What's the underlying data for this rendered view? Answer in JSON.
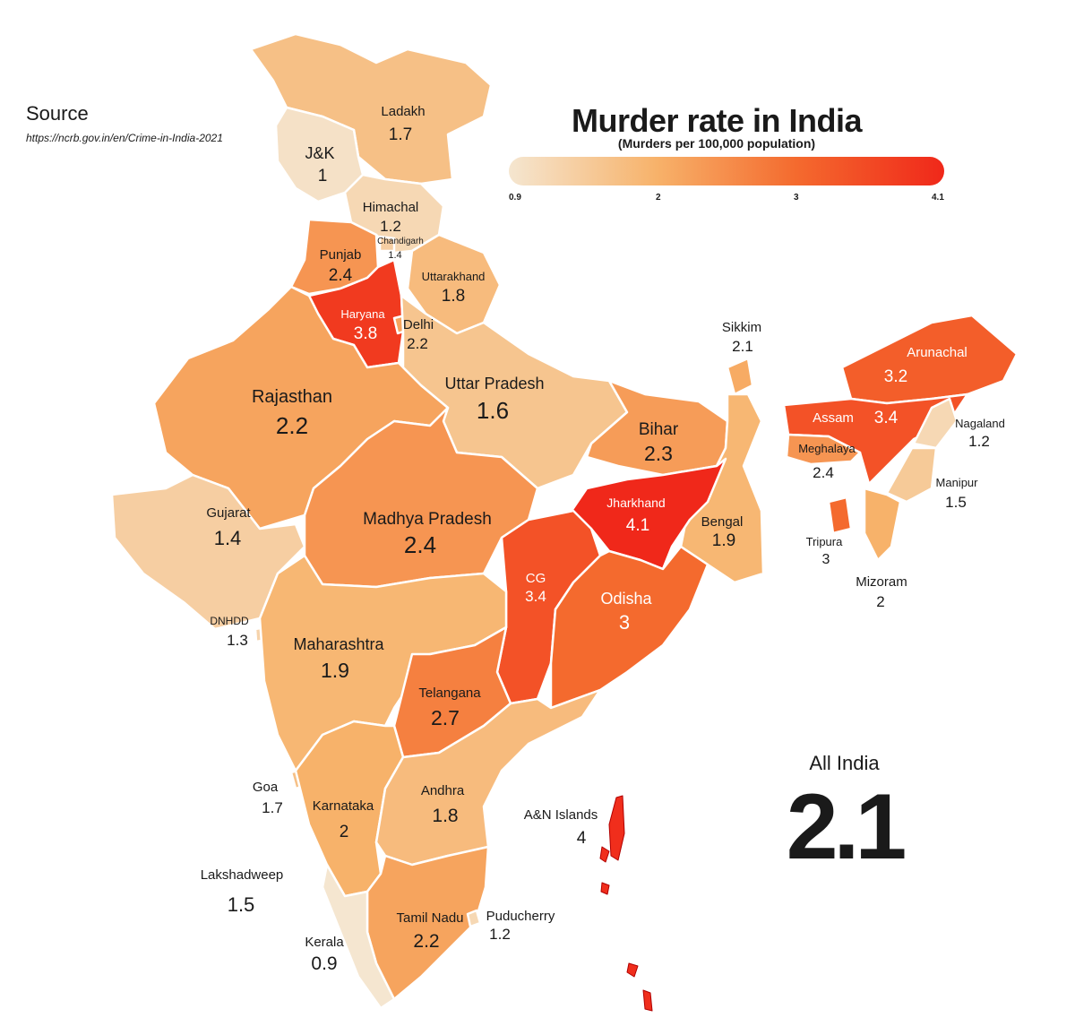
{
  "title": "Murder rate in India",
  "subtitle": "(Murders per 100,000 population)",
  "source": {
    "label": "Source",
    "url": "https://ncrb.gov.in/en/Crime-in-India-2021"
  },
  "legend": {
    "ticks": [
      "0.9",
      "2",
      "3",
      "4.1"
    ],
    "colors": [
      "#f5e6d0",
      "#f7b26a",
      "#f46a2e",
      "#f0281a"
    ]
  },
  "all_india": {
    "label": "All India",
    "value": "2.1"
  },
  "regions": {
    "ladakh": {
      "name": "Ladakh",
      "rate": "1.7"
    },
    "jk": {
      "name": "J&K",
      "rate": "1"
    },
    "himachal": {
      "name": "Himachal",
      "rate": "1.2"
    },
    "chandigarh": {
      "name": "Chandigarh",
      "rate": "1.4"
    },
    "punjab": {
      "name": "Punjab",
      "rate": "2.4"
    },
    "uttarakhand": {
      "name": "Uttarakhand",
      "rate": "1.8"
    },
    "haryana": {
      "name": "Haryana",
      "rate": "3.8"
    },
    "delhi": {
      "name": "Delhi",
      "rate": "2.2"
    },
    "rajasthan": {
      "name": "Rajasthan",
      "rate": "2.2"
    },
    "uttar_pradesh": {
      "name": "Uttar Pradesh",
      "rate": "1.6"
    },
    "bihar": {
      "name": "Bihar",
      "rate": "2.3"
    },
    "sikkim": {
      "name": "Sikkim",
      "rate": "2.1"
    },
    "arunachal": {
      "name": "Arunachal",
      "rate": "3.2"
    },
    "assam": {
      "name": "Assam",
      "rate": "3.4"
    },
    "nagaland": {
      "name": "Nagaland",
      "rate": "1.2"
    },
    "meghalaya": {
      "name": "Meghalaya",
      "rate": "2.4"
    },
    "manipur": {
      "name": "Manipur",
      "rate": "1.5"
    },
    "tripura": {
      "name": "Tripura",
      "rate": "3"
    },
    "mizoram": {
      "name": "Mizoram",
      "rate": "2"
    },
    "gujarat": {
      "name": "Gujarat",
      "rate": "1.4"
    },
    "madhya_pradesh": {
      "name": "Madhya Pradesh",
      "rate": "2.4"
    },
    "jharkhand": {
      "name": "Jharkhand",
      "rate": "4.1"
    },
    "bengal": {
      "name": "Bengal",
      "rate": "1.9"
    },
    "chhattisgarh": {
      "name": "CG",
      "rate": "3.4"
    },
    "odisha": {
      "name": "Odisha",
      "rate": "3"
    },
    "dnhdd": {
      "name": "DNHDD",
      "rate": "1.3"
    },
    "maharashtra": {
      "name": "Maharashtra",
      "rate": "1.9"
    },
    "telangana": {
      "name": "Telangana",
      "rate": "2.7"
    },
    "goa": {
      "name": "Goa",
      "rate": "1.7"
    },
    "karnataka": {
      "name": "Karnataka",
      "rate": "2"
    },
    "andhra": {
      "name": "Andhra",
      "rate": "1.8"
    },
    "an_islands": {
      "name": "A&N Islands",
      "rate": "4"
    },
    "lakshadweep": {
      "name": "Lakshadweep",
      "rate": "1.5"
    },
    "tamil_nadu": {
      "name": "Tamil Nadu",
      "rate": "2.2"
    },
    "puducherry": {
      "name": "Puducherry",
      "rate": "1.2"
    },
    "kerala": {
      "name": "Kerala",
      "rate": "0.9"
    }
  }
}
